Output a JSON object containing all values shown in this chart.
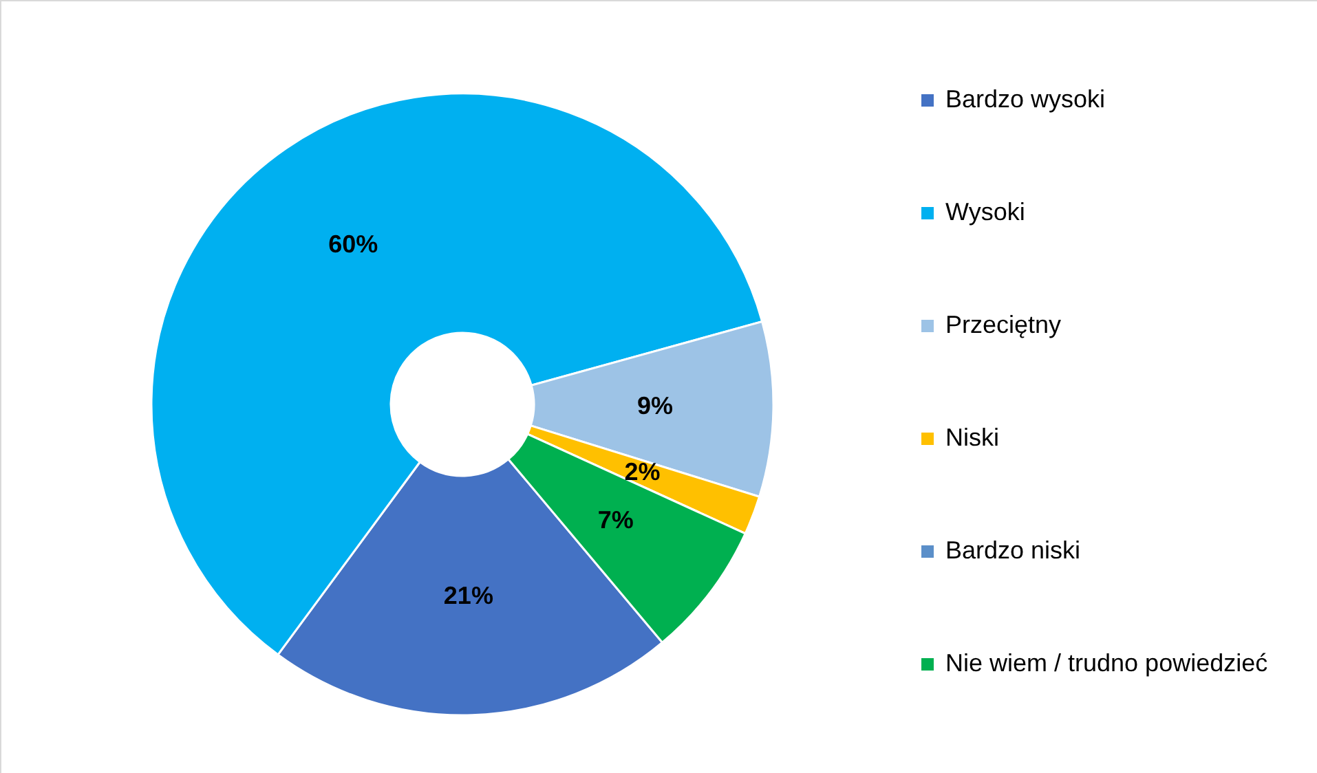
{
  "chart_data": {
    "type": "donut",
    "categories": [
      "Bardzo wysoki",
      "Wysoki",
      "Przeciętny",
      "Niski",
      "Bardzo niski",
      "Nie wiem / trudno powiedzieć"
    ],
    "values": [
      21,
      60,
      9,
      2,
      0,
      7
    ],
    "value_labels": [
      "21%",
      "60%",
      "9%",
      "2%",
      null,
      "7%"
    ],
    "colors": [
      "#4472c4",
      "#00b0f0",
      "#9dc3e6",
      "#ffc000",
      "#5b8fc9",
      "#00b050"
    ],
    "legend": "right"
  }
}
